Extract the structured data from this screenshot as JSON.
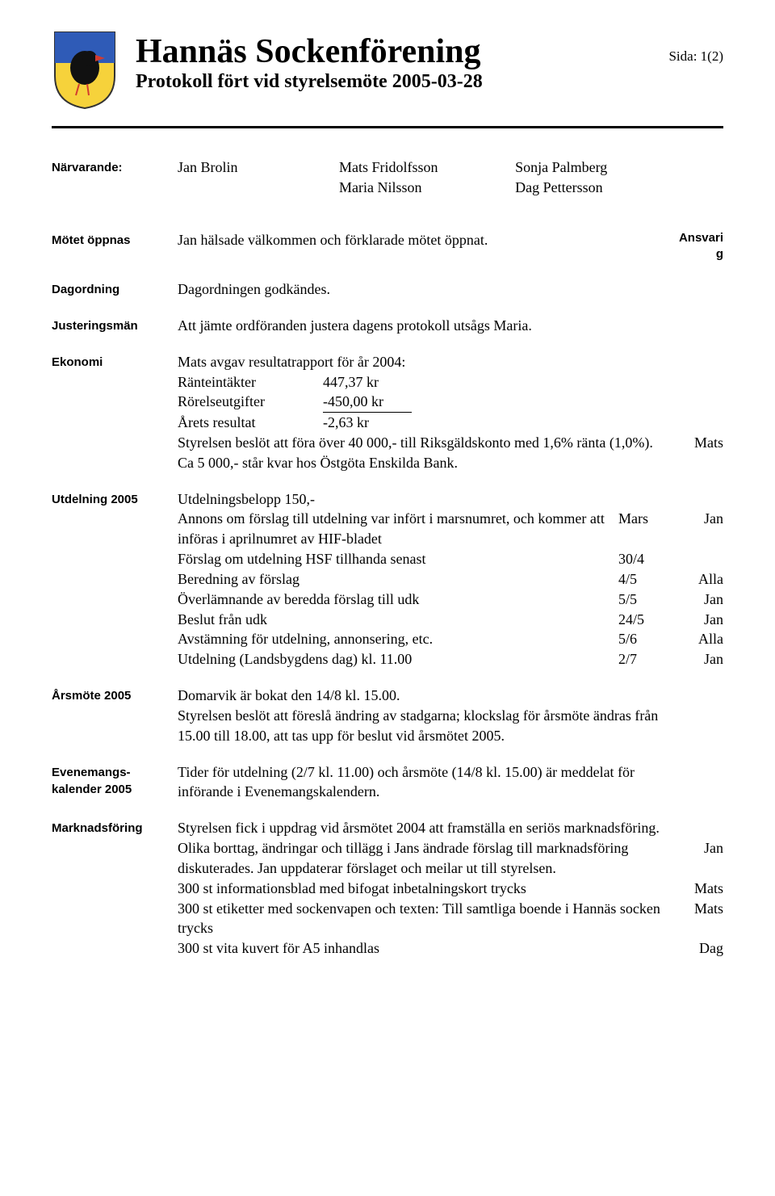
{
  "header": {
    "title": "Hannäs Sockenförening",
    "subtitle": "Protokoll fört vid styrelsemöte 2005-03-28",
    "page_label": "Sida: 1(2)"
  },
  "crest": {
    "shield_top_color": "#2f5bb7",
    "shield_bottom_color": "#f6d23b",
    "bird_color": "#111111",
    "beak_color": "#d33b2f"
  },
  "attendance": {
    "label": "Närvarande:",
    "rows": [
      [
        "Jan Brolin",
        "Mats Fridolfsson",
        "Sonja Palmberg"
      ],
      [
        "",
        "Maria Nilsson",
        "Dag Pettersson"
      ]
    ]
  },
  "resp_header": "Ansvari\ng",
  "sections": {
    "opening": {
      "label": "Mötet öppnas",
      "text": "Jan hälsade välkommen och förklarade mötet öppnat."
    },
    "agenda": {
      "label": "Dagordning",
      "text": "Dagordningen godkändes."
    },
    "adjusters": {
      "label": "Justeringsmän",
      "text": "Att jämte ordföranden justera dagens protokoll utsågs Maria."
    },
    "economy": {
      "label": "Ekonomi",
      "intro": "Mats avgav resultatrapport för år 2004:",
      "rows": [
        {
          "k": "Ränteintäkter",
          "v": "447,37 kr",
          "underline": false
        },
        {
          "k": "Rörelseutgifter",
          "v": "-450,00 kr",
          "underline": true
        },
        {
          "k": "Årets resultat",
          "v": "-2,63 kr",
          "underline": false
        }
      ],
      "tail": "Styrelsen beslöt att föra över 40 000,- till Riksgäldskonto med 1,6% ränta (1,0%). Ca 5 000,- står kvar hos Östgöta Enskilda Bank.",
      "responsible": "Mats"
    },
    "distribution": {
      "label": "Utdelning 2005",
      "head": "Utdelningsbelopp 150,-",
      "rows": [
        {
          "text": "Annons om förslag till utdelning var infört i marsnumret, och kommer att införas i aprilnumret av HIF-bladet",
          "date": "Mars",
          "who": "Jan"
        },
        {
          "text": "Förslag om utdelning HSF tillhanda senast",
          "date": "30/4",
          "who": ""
        },
        {
          "text": "Beredning av förslag",
          "date": "4/5",
          "who": "Alla"
        },
        {
          "text": "Överlämnande av beredda förslag till udk",
          "date": "5/5",
          "who": "Jan"
        },
        {
          "text": "Beslut från udk",
          "date": "24/5",
          "who": "Jan"
        },
        {
          "text": "Avstämning för utdelning, annonsering, etc.",
          "date": "5/6",
          "who": "Alla"
        },
        {
          "text": "Utdelning (Landsbygdens dag) kl. 11.00",
          "date": "2/7",
          "who": "Jan"
        }
      ]
    },
    "annual": {
      "label": "Årsmöte 2005",
      "text": "Domarvik är bokat den 14/8 kl. 15.00.\nStyrelsen beslöt att föreslå ändring av stadgarna; klockslag för årsmöte ändras från 15.00 till 18.00, att tas upp för beslut vid årsmötet 2005."
    },
    "calendar": {
      "label": "Evenemangs-\nkalender 2005",
      "text": "Tider för utdelning (2/7 kl. 11.00) och årsmöte (14/8 kl. 15.00) är meddelat för införande i Evenemangskalendern."
    },
    "marketing": {
      "label": "Marknadsföring",
      "intro": "Styrelsen fick i uppdrag vid årsmötet 2004 att framställa en seriös marknadsföring.",
      "rows": [
        {
          "text": "Olika borttag, ändringar och tillägg i Jans ändrade förslag till marknadsföring diskuterades. Jan uppdaterar förslaget och meilar ut till styrelsen.",
          "who": "Jan"
        },
        {
          "text": "300 st informationsblad med bifogat inbetalningskort trycks",
          "who": "Mats"
        },
        {
          "text": "300 st etiketter med sockenvapen och texten: Till samtliga boende i Hannäs socken trycks",
          "who": "Mats"
        },
        {
          "text": "300 st vita kuvert för A5 inhandlas",
          "who": "Dag"
        }
      ]
    }
  }
}
